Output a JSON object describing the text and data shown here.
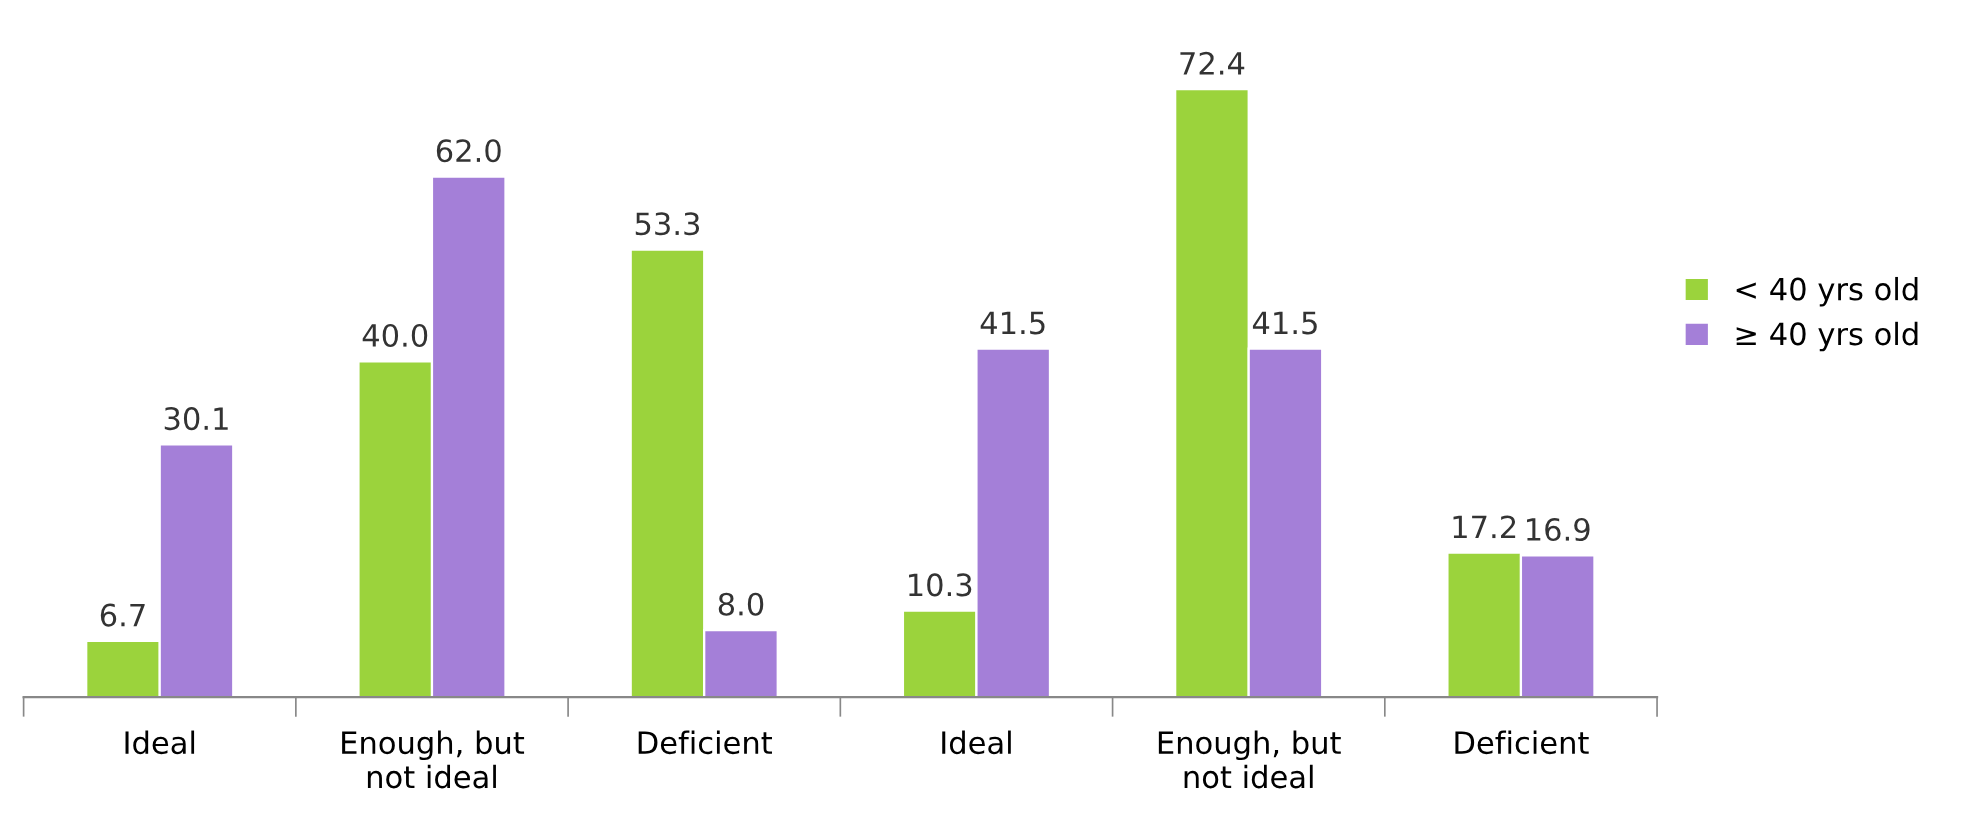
{
  "chart_data": {
    "type": "bar",
    "categories": [
      "Ideal",
      "Enough, but\nnot ideal",
      "Deficient",
      "Ideal",
      "Enough, but\nnot ideal",
      "Deficient"
    ],
    "series": [
      {
        "name": "< 40 yrs old",
        "color": "#9bd33c",
        "values": [
          6.7,
          40.0,
          53.3,
          10.3,
          72.4,
          17.2
        ],
        "value_labels": [
          "6.7",
          "40.0",
          "53.3",
          "10.3",
          "72.4",
          "17.2"
        ]
      },
      {
        "name": "≥ 40 yrs old",
        "color": "#a47fd8",
        "values": [
          30.1,
          62.0,
          8.0,
          41.5,
          41.5,
          16.9
        ],
        "value_labels": [
          "30.1",
          "62.0",
          "8.0",
          "41.5",
          "41.5",
          "16.9"
        ]
      }
    ],
    "legend": "right",
    "grid": false,
    "tick_labels": "x"
  }
}
